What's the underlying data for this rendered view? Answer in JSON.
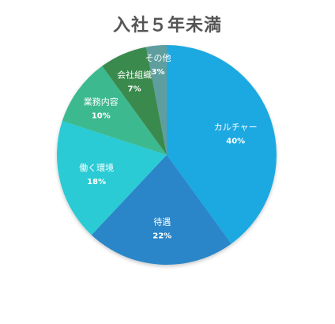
{
  "chart_data": {
    "type": "pie",
    "title": "入社５年未満",
    "slices": [
      {
        "label": "カルチャー",
        "value": 40,
        "pct_label": "40%",
        "color": "#1ea9e1"
      },
      {
        "label": "待遇",
        "value": 22,
        "pct_label": "22%",
        "color": "#2a86c8"
      },
      {
        "label": "働く環境",
        "value": 18,
        "pct_label": "18%",
        "color": "#2ccbd4"
      },
      {
        "label": "業務内容",
        "value": 10,
        "pct_label": "10%",
        "color": "#3db98f"
      },
      {
        "label": "会社組織",
        "value": 7,
        "pct_label": "7%",
        "color": "#3a8a4d"
      },
      {
        "label": "その他",
        "value": 3,
        "pct_label": "3%",
        "color": "#5e9e9e"
      }
    ]
  }
}
